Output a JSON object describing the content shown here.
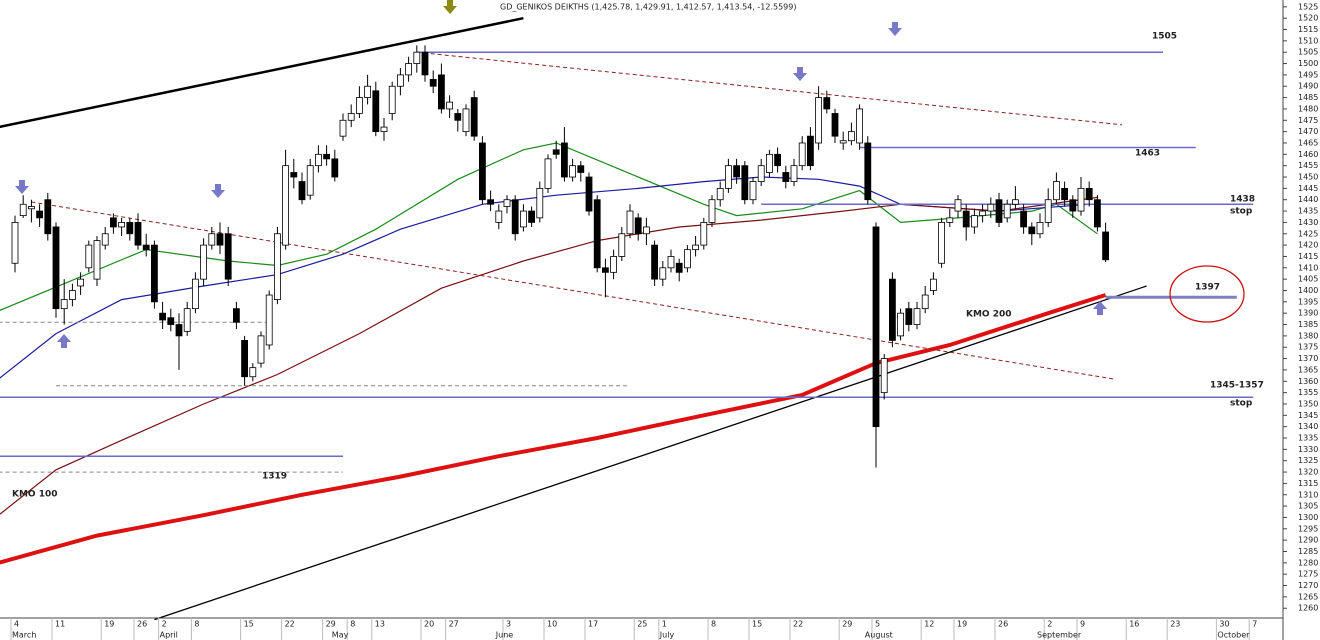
{
  "chart_data": {
    "type": "candlestick",
    "title": "GD_GENIKOS DEIKTHS (1,425.78, 1,429.91, 1,412.57, 1,413.54, -12.5599)",
    "categories": [
      "4",
      null,
      null,
      null,
      null,
      "11",
      null,
      null,
      null,
      null,
      null,
      "19",
      null,
      null,
      null,
      "26",
      null,
      null,
      "2",
      null,
      null,
      null,
      "8",
      null,
      null,
      null,
      null,
      null,
      "15",
      null,
      null,
      null,
      null,
      "22",
      null,
      null,
      null,
      null,
      "29",
      null,
      null,
      "8",
      null,
      null,
      "13",
      null,
      null,
      null,
      null,
      null,
      "20",
      null,
      null,
      "27",
      null,
      null,
      null,
      null,
      null,
      null,
      "3",
      null,
      null,
      null,
      null,
      "10",
      null,
      null,
      null,
      null,
      "17",
      null,
      null,
      null,
      null,
      null,
      "25",
      null,
      null,
      "1",
      null,
      null,
      null,
      null,
      null,
      "8",
      null,
      null,
      null,
      null,
      "15",
      null,
      null,
      null,
      null,
      "22",
      null,
      null,
      null,
      null,
      null,
      "29",
      null,
      null,
      null,
      "5",
      null,
      null,
      null,
      null,
      null,
      "12",
      null,
      null,
      null,
      "19",
      null,
      null,
      null,
      null,
      "26",
      null,
      null,
      null,
      null,
      null,
      "2",
      null,
      null,
      null,
      "9",
      null,
      null,
      null,
      null,
      null,
      "16",
      null,
      null,
      null,
      null,
      "23",
      null,
      null,
      null,
      null,
      null,
      "30",
      null,
      null,
      null,
      "7"
    ],
    "month_labels": [
      "March",
      null,
      null,
      null,
      null,
      null,
      null,
      null,
      null,
      null,
      null,
      null,
      null,
      null,
      null,
      null,
      null,
      null,
      "April",
      null,
      null,
      null,
      null,
      null,
      null,
      null,
      null,
      null,
      null,
      null,
      null,
      null,
      null,
      null,
      null,
      null,
      null,
      null,
      null,
      "May",
      null,
      null,
      null,
      null,
      null,
      null,
      null,
      null,
      null,
      null,
      null,
      null,
      null,
      null,
      null,
      null,
      null,
      null,
      null,
      "June",
      null,
      null,
      null,
      null,
      null,
      null,
      null,
      null,
      null,
      null,
      null,
      null,
      null,
      null,
      null,
      null,
      null,
      null,
      null,
      "July",
      null,
      null,
      null,
      null,
      null,
      null,
      null,
      null,
      null,
      null,
      null,
      null,
      null,
      null,
      null,
      null,
      null,
      null,
      null,
      null,
      null,
      null,
      null,
      null,
      "August",
      null,
      null,
      null,
      null,
      null,
      null,
      null,
      null,
      null,
      null,
      null,
      null,
      null,
      null,
      null,
      null,
      null,
      null,
      null,
      null,
      "September",
      null,
      null,
      null,
      null,
      null,
      null,
      null,
      null,
      null,
      null,
      null,
      null,
      null,
      null,
      null,
      null,
      null,
      null,
      null,
      null,
      null,
      "October",
      null,
      null,
      null,
      null
    ],
    "open": [
      1412,
      1433,
      1436,
      1435,
      1440,
      1428,
      1392,
      1396,
      1402,
      1410,
      1405,
      1420,
      1432,
      1428,
      1430,
      1430,
      1420,
      1420,
      1390,
      1388,
      1385,
      1382,
      1392,
      1405,
      1420,
      1425,
      1425,
      1392,
      1378,
      1362,
      1368,
      1376,
      1396,
      1420,
      1452,
      1448,
      1442,
      1455,
      1460,
      1458,
      1468,
      1475,
      1478,
      1485,
      1488,
      1470,
      1478,
      1490,
      1495,
      1500,
      1505,
      1493,
      1495,
      1480,
      1478,
      1470,
      1485,
      1465,
      1440,
      1430,
      1437,
      1440,
      1428,
      1435,
      1432,
      1445,
      1462,
      1465,
      1450,
      1455,
      1450,
      1440,
      1410,
      1408,
      1415,
      1425,
      1432,
      1425,
      1420,
      1405,
      1410,
      1412,
      1410,
      1418,
      1420,
      1430,
      1440,
      1445,
      1455,
      1455,
      1440,
      1448,
      1452,
      1460,
      1452,
      1448,
      1455,
      1468,
      1465,
      1485,
      1478,
      1465,
      1466,
      1465,
      1465,
      1428,
      1355,
      1405,
      1380,
      1392,
      1385,
      1392,
      1400,
      1412,
      1430,
      1435,
      1435,
      1428,
      1433,
      1435,
      1440,
      1432,
      1438,
      1435,
      1428,
      1425,
      1430,
      1440,
      1445,
      1440,
      1435,
      1445,
      1440,
      1425.78,
      null,
      null,
      null,
      null,
      null,
      null,
      null,
      null,
      null,
      null,
      null,
      null,
      null,
      null,
      null,
      null,
      null,
      null
    ],
    "high": [
      1433,
      1442,
      1440,
      1438,
      1443,
      1430,
      1405,
      1403,
      1408,
      1422,
      1424,
      1428,
      1434,
      1432,
      1432,
      1434,
      1425,
      1422,
      1395,
      1392,
      1390,
      1395,
      1408,
      1423,
      1428,
      1430,
      1428,
      1395,
      1380,
      1368,
      1382,
      1400,
      1428,
      1462,
      1458,
      1452,
      1458,
      1464,
      1464,
      1462,
      1478,
      1482,
      1490,
      1495,
      1492,
      1476,
      1492,
      1498,
      1503,
      1508,
      1508,
      1497,
      1500,
      1486,
      1480,
      1482,
      1488,
      1468,
      1444,
      1438,
      1442,
      1442,
      1438,
      1437,
      1448,
      1460,
      1466,
      1472,
      1458,
      1457,
      1452,
      1442,
      1414,
      1418,
      1428,
      1438,
      1434,
      1432,
      1422,
      1413,
      1418,
      1414,
      1420,
      1424,
      1432,
      1442,
      1448,
      1458,
      1458,
      1457,
      1450,
      1458,
      1462,
      1463,
      1455,
      1458,
      1468,
      1472,
      1490,
      1488,
      1480,
      1470,
      1474,
      1482,
      1468,
      1430,
      1372,
      1408,
      1392,
      1395,
      1395,
      1402,
      1408,
      1432,
      1436,
      1442,
      1438,
      1436,
      1438,
      1441,
      1443,
      1440,
      1446,
      1438,
      1430,
      1434,
      1445,
      1452,
      1448,
      1442,
      1450,
      1448,
      1442,
      1429.91,
      null,
      null,
      null,
      null,
      null,
      null,
      null,
      null,
      null,
      null,
      null,
      null,
      null,
      null,
      null,
      null,
      null,
      null
    ],
    "low": [
      1408,
      1432,
      1430,
      1428,
      1422,
      1388,
      1385,
      1393,
      1398,
      1408,
      1402,
      1418,
      1425,
      1424,
      1422,
      1418,
      1415,
      1392,
      1383,
      1382,
      1365,
      1380,
      1390,
      1402,
      1418,
      1416,
      1402,
      1383,
      1358,
      1360,
      1366,
      1374,
      1394,
      1418,
      1445,
      1438,
      1440,
      1452,
      1455,
      1448,
      1466,
      1472,
      1476,
      1482,
      1468,
      1466,
      1475,
      1486,
      1492,
      1496,
      1492,
      1487,
      1478,
      1476,
      1470,
      1468,
      1466,
      1438,
      1435,
      1427,
      1434,
      1422,
      1426,
      1428,
      1430,
      1443,
      1458,
      1448,
      1448,
      1448,
      1433,
      1408,
      1397,
      1405,
      1413,
      1423,
      1422,
      1420,
      1402,
      1402,
      1408,
      1404,
      1408,
      1415,
      1418,
      1428,
      1437,
      1443,
      1447,
      1438,
      1438,
      1446,
      1450,
      1452,
      1445,
      1446,
      1453,
      1453,
      1462,
      1478,
      1465,
      1462,
      1464,
      1462,
      1438,
      1322,
      1352,
      1375,
      1378,
      1382,
      1383,
      1390,
      1398,
      1410,
      1428,
      1432,
      1422,
      1425,
      1430,
      1432,
      1428,
      1430,
      1436,
      1425,
      1420,
      1423,
      1428,
      1438,
      1437,
      1432,
      1433,
      1437,
      1426,
      1412.57,
      null,
      null,
      null,
      null,
      null,
      null,
      null,
      null,
      null,
      null,
      null,
      null,
      null,
      null,
      null,
      null,
      null,
      null
    ],
    "close": [
      1430,
      1438,
      1437,
      1432,
      1425,
      1392,
      1396,
      1400,
      1405,
      1420,
      1422,
      1425,
      1428,
      1430,
      1425,
      1420,
      1418,
      1395,
      1387,
      1385,
      1380,
      1392,
      1405,
      1420,
      1425,
      1420,
      1405,
      1386,
      1362,
      1366,
      1380,
      1398,
      1425,
      1455,
      1450,
      1440,
      1455,
      1460,
      1458,
      1450,
      1475,
      1478,
      1485,
      1490,
      1470,
      1472,
      1490,
      1495,
      1500,
      1505,
      1495,
      1490,
      1480,
      1483,
      1475,
      1480,
      1468,
      1440,
      1438,
      1435,
      1440,
      1425,
      1435,
      1430,
      1445,
      1458,
      1460,
      1450,
      1455,
      1452,
      1435,
      1410,
      1408,
      1415,
      1425,
      1435,
      1425,
      1428,
      1405,
      1410,
      1415,
      1408,
      1418,
      1420,
      1430,
      1440,
      1445,
      1455,
      1450,
      1440,
      1448,
      1455,
      1460,
      1455,
      1448,
      1455,
      1465,
      1455,
      1485,
      1480,
      1468,
      1466,
      1470,
      1480,
      1440,
      1340,
      1370,
      1378,
      1390,
      1385,
      1392,
      1398,
      1405,
      1430,
      1432,
      1440,
      1428,
      1433,
      1435,
      1438,
      1430,
      1438,
      1440,
      1428,
      1425,
      1430,
      1440,
      1448,
      1440,
      1435,
      1445,
      1440,
      1428,
      1413.54,
      null,
      null,
      null,
      null,
      null,
      null,
      null,
      null,
      null,
      null,
      null,
      null,
      null,
      null,
      null,
      null,
      null,
      null
    ],
    "up_color": "#ffffff",
    "down_color": "#000000",
    "ylim": [
      1246,
      1528
    ],
    "yticks": [
      1260,
      1265,
      1270,
      1275,
      1280,
      1285,
      1290,
      1295,
      1300,
      1305,
      1310,
      1315,
      1320,
      1325,
      1330,
      1335,
      1340,
      1345,
      1350,
      1355,
      1360,
      1365,
      1370,
      1375,
      1380,
      1385,
      1390,
      1395,
      1400,
      1405,
      1410,
      1415,
      1420,
      1425,
      1430,
      1435,
      1440,
      1445,
      1450,
      1455,
      1460,
      1465,
      1470,
      1475,
      1480,
      1485,
      1490,
      1495,
      1500,
      1505,
      1510,
      1515,
      1520,
      1525
    ],
    "overlays": [
      {
        "color": "#1a8a1a",
        "width": 1.2,
        "x": [
          -2,
          16,
          26,
          32,
          38,
          44,
          54,
          62,
          66,
          74,
          84,
          88,
          96,
          103,
          108,
          115,
          124,
          127,
          132
        ],
        "values": [
          1391,
          1418,
          1413,
          1411,
          1416,
          1427,
          1449,
          1462,
          1465,
          1453,
          1438,
          1433,
          1436,
          1444,
          1430,
          1432,
          1435,
          1438,
          1425
        ]
      },
      {
        "color": "#1a1aa0",
        "width": 1.2,
        "x": [
          -2,
          5,
          13,
          23,
          32,
          40,
          47,
          57,
          66,
          76,
          84,
          91,
          98,
          103,
          108,
          120,
          131
        ],
        "values": [
          1361,
          1381,
          1396,
          1402,
          1407,
          1416,
          1427,
          1438,
          1442,
          1445,
          1448,
          1450,
          1449,
          1446,
          1438,
          1435,
          1438
        ]
      },
      {
        "color": "#7a1010",
        "width": 1.2,
        "x": [
          -2,
          5,
          13,
          23,
          32,
          42,
          52,
          62,
          71,
          81,
          91,
          101,
          108,
          120,
          132
        ],
        "values": [
          1301,
          1321,
          1334,
          1350,
          1363,
          1381,
          1401,
          1413,
          1422,
          1428,
          1431,
          1435,
          1438,
          1435,
          1441
        ]
      },
      {
        "color": "#dd1111",
        "width": 4,
        "x": [
          -2,
          10,
          23,
          35,
          47,
          59,
          71,
          84,
          96,
          105,
          114,
          126,
          133
        ],
        "values": [
          1280,
          1292,
          1301,
          1310,
          1318,
          1327,
          1335,
          1345,
          1354,
          1368,
          1376,
          1390,
          1398
        ]
      },
      {
        "color": "#000000",
        "width": 2.5,
        "x": [
          -2,
          62
        ],
        "values": [
          1472,
          1520
        ]
      },
      {
        "color": "#000000",
        "width": 1.3,
        "x": [
          17,
          138
        ],
        "values": [
          1255,
          1402
        ]
      },
      {
        "color": "#8b2020",
        "width": 1,
        "dashed": true,
        "x": [
          49,
          135
        ],
        "values": [
          1505,
          1473
        ]
      },
      {
        "color": "#8b2020",
        "width": 1,
        "dashed": true,
        "x": [
          2,
          134
        ],
        "values": [
          1439,
          1361
        ]
      },
      {
        "color": "#6a6ac8",
        "width": 1.5,
        "x": [
          49,
          140
        ],
        "values": [
          1505,
          1505
        ]
      },
      {
        "color": "#6a6ac8",
        "width": 1.5,
        "x": [
          103,
          144
        ],
        "values": [
          1463,
          1463
        ]
      },
      {
        "color": "#6a6ac8",
        "width": 1.5,
        "x": [
          91,
          151
        ],
        "values": [
          1438,
          1438
        ]
      },
      {
        "color": "#6a6ac8",
        "width": 1.5,
        "x": [
          -2,
          151
        ],
        "values": [
          1353,
          1353
        ]
      },
      {
        "color": "#6a6ac8",
        "width": 1.5,
        "x": [
          -2,
          40
        ],
        "values": [
          1327,
          1327
        ]
      },
      {
        "color": "#8080c0",
        "width": 3,
        "x": [
          133,
          149
        ],
        "values": [
          1397,
          1397
        ]
      },
      {
        "color": "#888888",
        "width": 1,
        "dashed": true,
        "x": [
          -2,
          31
        ],
        "values": [
          1386,
          1386
        ]
      },
      {
        "color": "#888888",
        "width": 1,
        "dashed": true,
        "x": [
          5,
          75
        ],
        "values": [
          1358,
          1358
        ]
      },
      {
        "color": "#888888",
        "width": 1,
        "dashed": true,
        "x": [
          -2,
          40
        ],
        "values": [
          1320,
          1320
        ]
      }
    ],
    "annotations": [
      "1505",
      "1463",
      "1438",
      "stop",
      "1397",
      "1345-1357",
      "stop",
      "1319",
      "KMO 100",
      "KMO 200"
    ]
  }
}
